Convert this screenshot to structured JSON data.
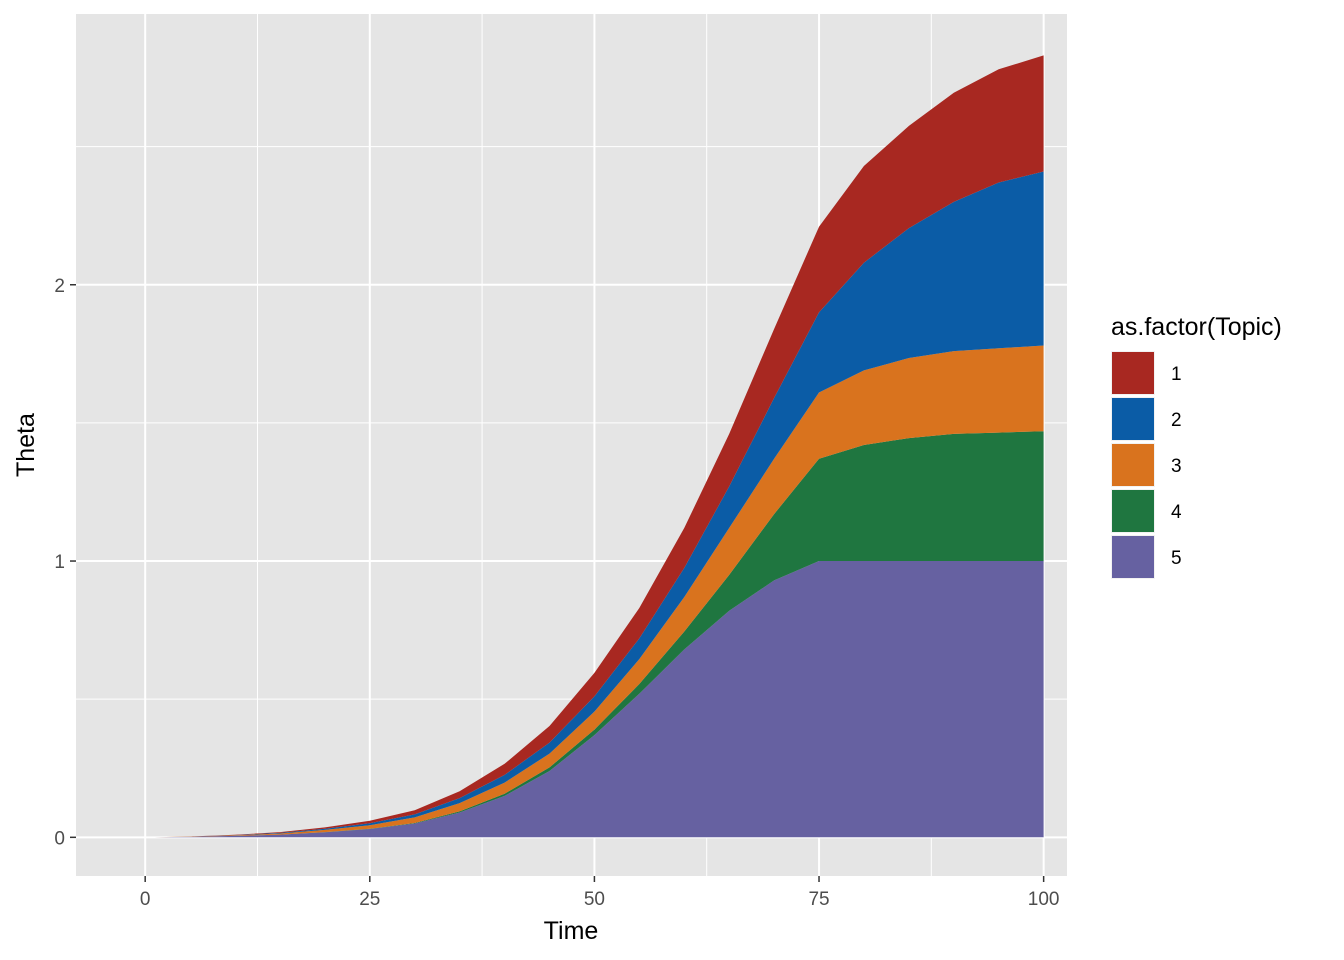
{
  "chart_data": {
    "type": "area",
    "stacked": true,
    "xlabel": "Time",
    "ylabel": "Theta",
    "xlim": [
      -7.7,
      102.6
    ],
    "ylim": [
      -0.14,
      2.98
    ],
    "x_ticks": [
      0,
      25,
      50,
      75,
      100
    ],
    "y_ticks": [
      0,
      1,
      2
    ],
    "grid": true,
    "legend": {
      "title": "as.factor(Topic)",
      "position": "right"
    },
    "x": [
      1,
      5,
      10,
      15,
      20,
      25,
      30,
      35,
      40,
      45,
      50,
      55,
      60,
      65,
      70,
      75,
      80,
      85,
      90,
      95,
      100
    ],
    "series": [
      {
        "name": "1",
        "color": "#A82821",
        "values": [
          0.0,
          0.0,
          0.001,
          0.003,
          0.005,
          0.009,
          0.015,
          0.025,
          0.04,
          0.06,
          0.085,
          0.11,
          0.145,
          0.19,
          0.25,
          0.31,
          0.35,
          0.37,
          0.395,
          0.41,
          0.42
        ]
      },
      {
        "name": "2",
        "color": "#0B5CA6",
        "values": [
          0.0,
          0.0,
          0.001,
          0.002,
          0.004,
          0.007,
          0.011,
          0.018,
          0.028,
          0.04,
          0.055,
          0.075,
          0.105,
          0.15,
          0.22,
          0.29,
          0.39,
          0.47,
          0.54,
          0.6,
          0.63
        ]
      },
      {
        "name": "3",
        "color": "#D9731E",
        "values": [
          0.0,
          0.001,
          0.002,
          0.004,
          0.008,
          0.013,
          0.02,
          0.03,
          0.04,
          0.05,
          0.065,
          0.09,
          0.125,
          0.17,
          0.2,
          0.24,
          0.27,
          0.29,
          0.3,
          0.305,
          0.31
        ]
      },
      {
        "name": "4",
        "color": "#1F7640",
        "values": [
          0.0,
          0.0,
          0.0,
          0.0,
          0.001,
          0.001,
          0.002,
          0.004,
          0.008,
          0.013,
          0.02,
          0.035,
          0.065,
          0.13,
          0.24,
          0.37,
          0.42,
          0.445,
          0.46,
          0.465,
          0.47
        ]
      },
      {
        "name": "5",
        "color": "#6661A1",
        "values": [
          0.0,
          0.002,
          0.005,
          0.01,
          0.018,
          0.03,
          0.05,
          0.09,
          0.15,
          0.24,
          0.37,
          0.52,
          0.68,
          0.82,
          0.93,
          1.0,
          1.0,
          1.0,
          1.0,
          1.0,
          1.0
        ]
      }
    ]
  }
}
